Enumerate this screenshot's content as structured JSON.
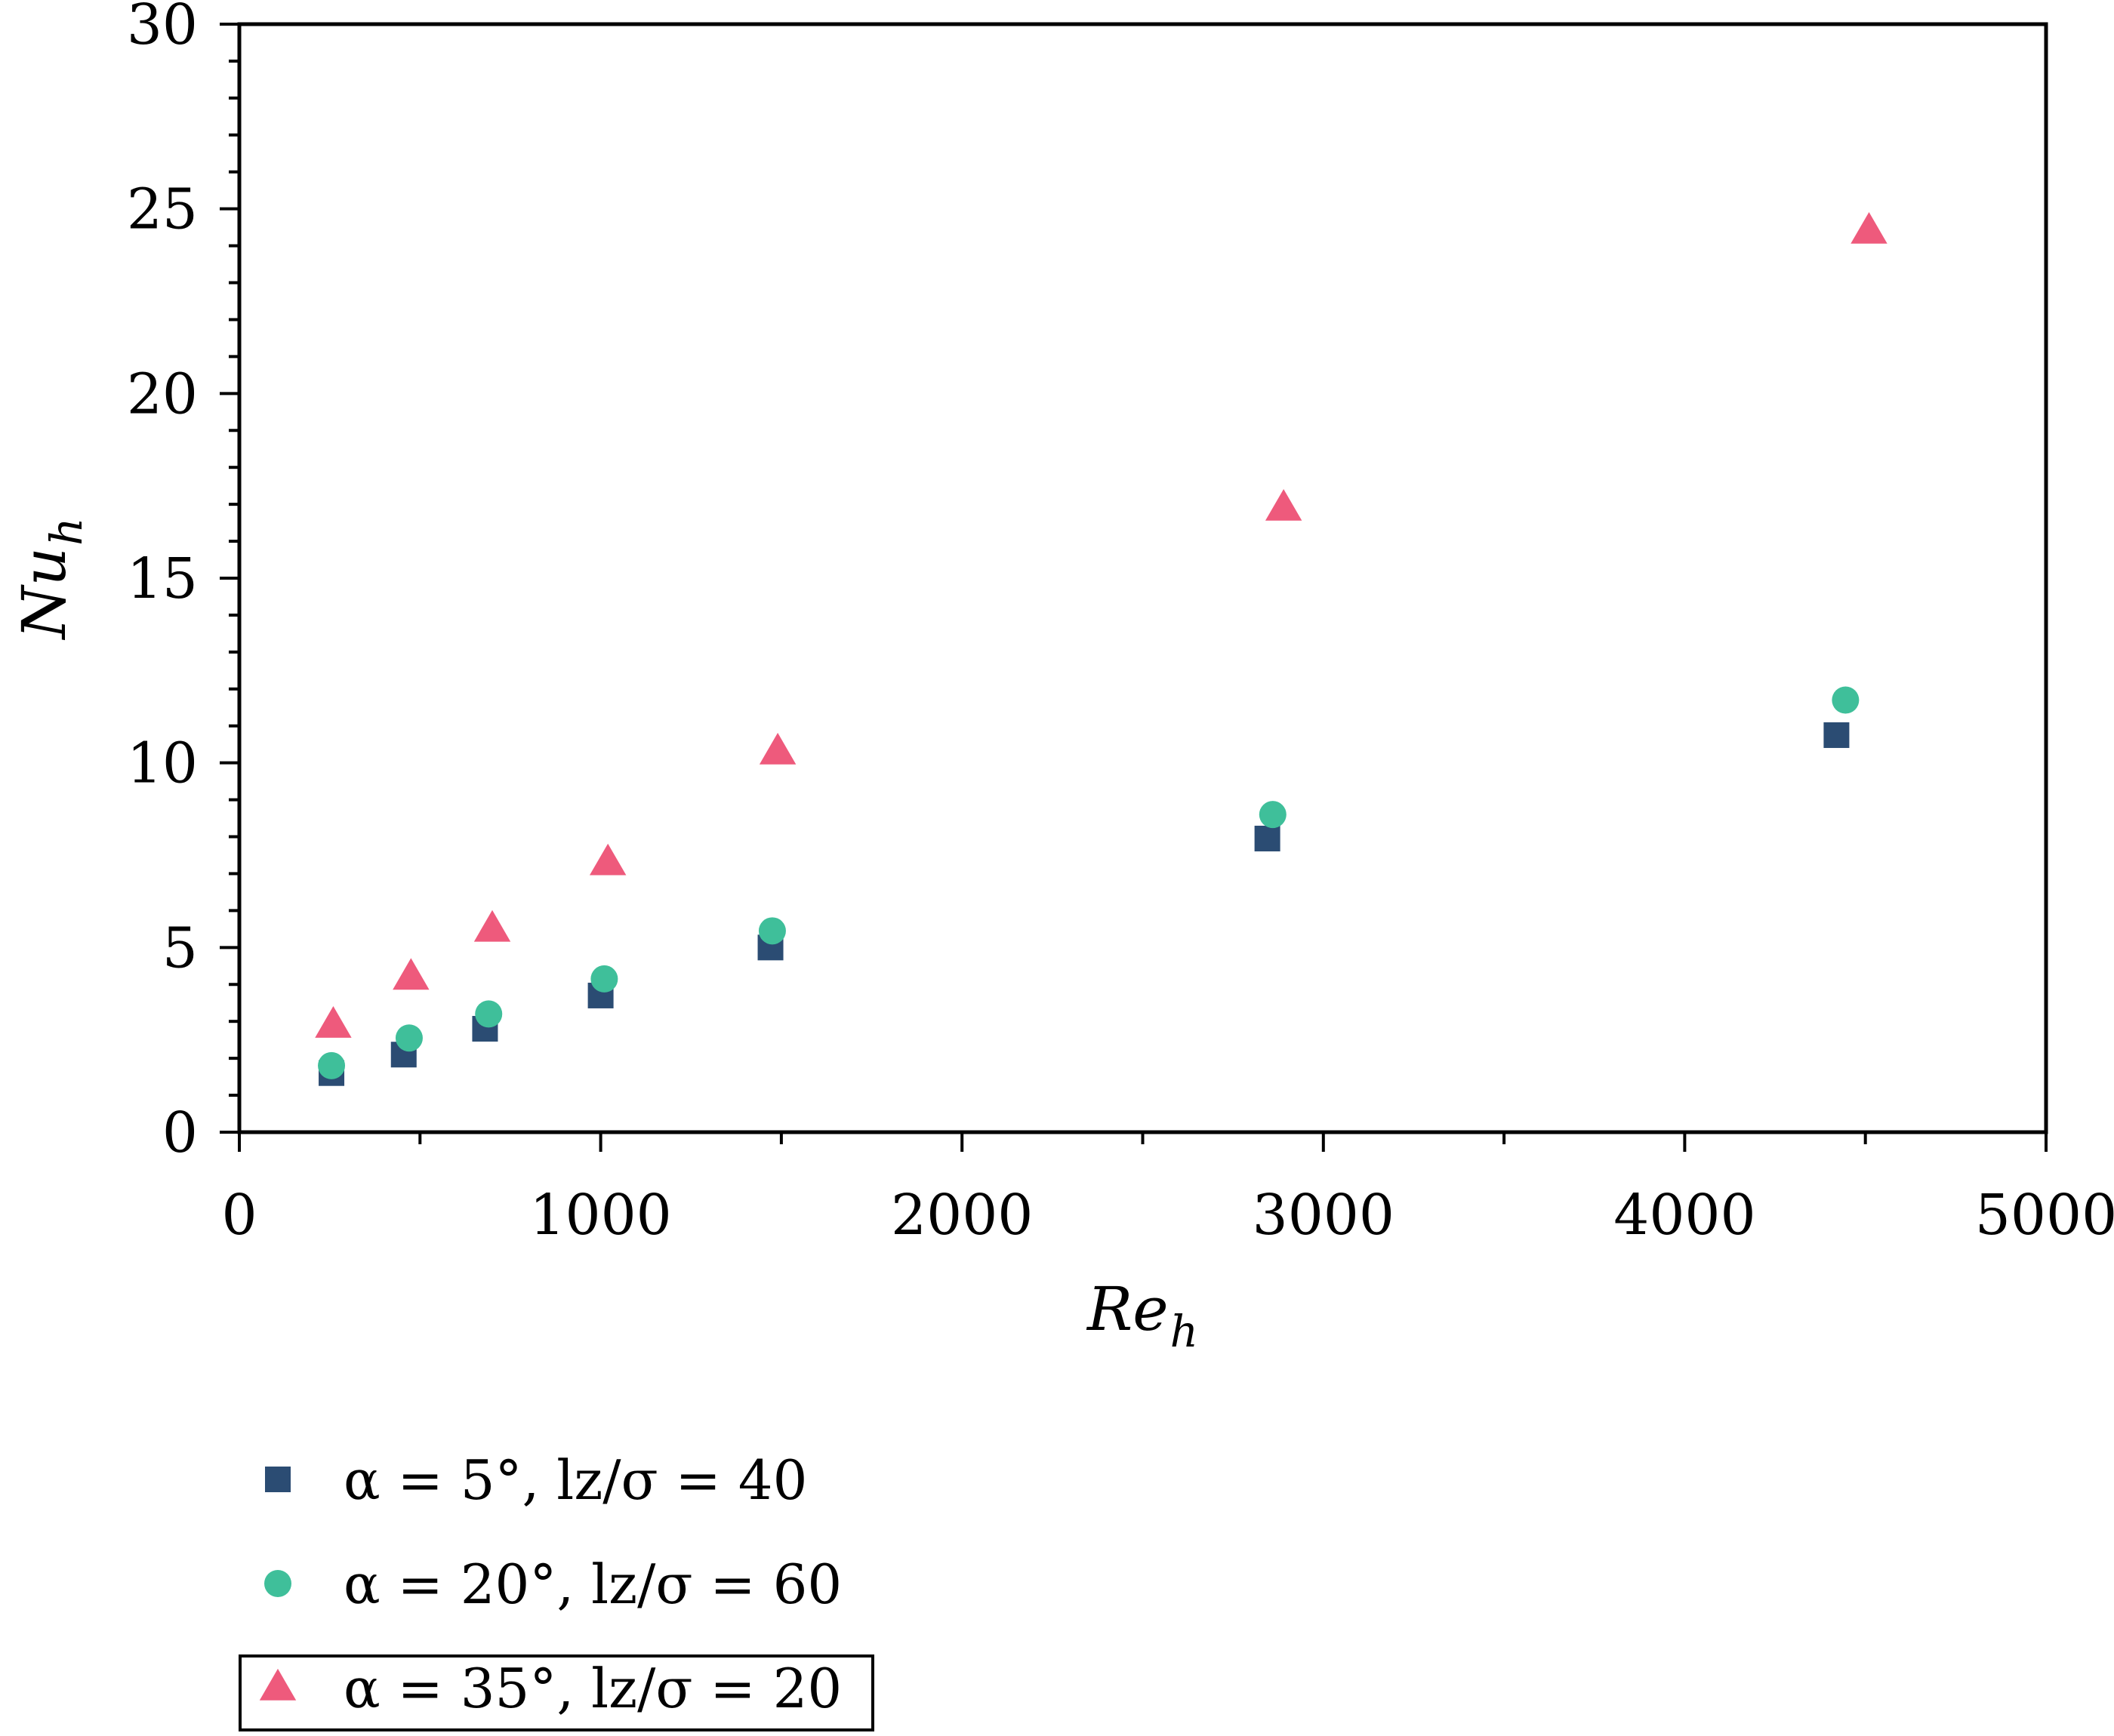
{
  "chart_data": {
    "type": "scatter",
    "title": "",
    "xlabel": {
      "main": "Re",
      "sub": "h"
    },
    "ylabel": {
      "main": "Nu",
      "sub": "h"
    },
    "xlim": [
      0,
      5000
    ],
    "ylim": [
      0,
      30
    ],
    "x_ticks": [
      0,
      1000,
      2000,
      3000,
      4000,
      5000
    ],
    "y_ticks": [
      0,
      5,
      10,
      15,
      20,
      25,
      30
    ],
    "x_tick_labels": [
      "0",
      "1000",
      "2000",
      "3000",
      "4000",
      "5000"
    ],
    "y_tick_labels": [
      "0",
      "5",
      "10",
      "15",
      "20",
      "25",
      "30"
    ],
    "grid": false,
    "legend_position": "bottom",
    "series": [
      {
        "name": "α = 5°, lz/σ = 40",
        "marker": "square",
        "color": "#2b4c73",
        "points": [
          {
            "x": 255,
            "y": 1.6
          },
          {
            "x": 455,
            "y": 2.1
          },
          {
            "x": 680,
            "y": 2.8
          },
          {
            "x": 1000,
            "y": 3.7
          },
          {
            "x": 1470,
            "y": 5.0
          },
          {
            "x": 2845,
            "y": 7.95
          },
          {
            "x": 4420,
            "y": 10.75
          }
        ]
      },
      {
        "name": "α = 20°, lz/σ = 60",
        "marker": "circle",
        "color": "#3fbf9a",
        "points": [
          {
            "x": 255,
            "y": 1.8
          },
          {
            "x": 470,
            "y": 2.55
          },
          {
            "x": 690,
            "y": 3.2
          },
          {
            "x": 1010,
            "y": 4.15
          },
          {
            "x": 1475,
            "y": 5.45
          },
          {
            "x": 2860,
            "y": 8.6
          },
          {
            "x": 4445,
            "y": 11.7
          }
        ]
      },
      {
        "name": "α = 35°, lz/σ = 20",
        "marker": "triangle",
        "color": "#ee5a7c",
        "points": [
          {
            "x": 260,
            "y": 2.9
          },
          {
            "x": 475,
            "y": 4.2
          },
          {
            "x": 700,
            "y": 5.5
          },
          {
            "x": 1020,
            "y": 7.3
          },
          {
            "x": 1490,
            "y": 10.3
          },
          {
            "x": 2890,
            "y": 16.9
          },
          {
            "x": 4510,
            "y": 24.4
          }
        ]
      }
    ]
  }
}
